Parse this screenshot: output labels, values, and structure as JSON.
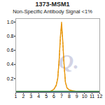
{
  "chart_data": {
    "type": "line",
    "title": "1373-MSM1",
    "subtitle": "Non-Specific Antibody Signal <1%",
    "x": [
      1,
      1.5,
      2,
      2.5,
      3,
      3.5,
      4,
      4.5,
      5,
      5.5,
      6,
      6.3,
      6.5,
      6.7,
      6.85,
      7.0,
      7.15,
      7.3,
      7.5,
      7.7,
      8,
      8.5,
      9,
      9.5,
      10,
      10.5,
      11,
      11.5,
      12
    ],
    "series": [
      {
        "color": "#E8960A",
        "line_style": "dashed",
        "values": [
          0.01,
          0.01,
          0.01,
          0.01,
          0.01,
          0.01,
          0.01,
          0.01,
          0.015,
          0.015,
          0.05,
          0.11,
          0.21,
          0.48,
          0.78,
          0.97,
          0.72,
          0.43,
          0.16,
          0.07,
          0.04,
          0.025,
          0.015,
          0.015,
          0.01,
          0.01,
          0.01,
          0.01,
          0.01
        ]
      },
      {
        "color": "#E8960A",
        "line_style": "solid",
        "values": [
          0.01,
          0.01,
          0.01,
          0.01,
          0.01,
          0.01,
          0.01,
          0.01,
          0.015,
          0.015,
          0.05,
          0.1,
          0.2,
          0.5,
          0.8,
          1.0,
          0.75,
          0.45,
          0.15,
          0.07,
          0.04,
          0.025,
          0.015,
          0.015,
          0.01,
          0.01,
          0.01,
          0.01,
          0.01
        ]
      },
      {
        "color": "#3A8C3A",
        "line_style": "solid",
        "values": [
          0.02,
          0.02,
          0.02,
          0.02,
          0.02,
          0.02,
          0.02,
          0.02,
          0.02,
          0.02,
          0.02,
          0.02,
          0.02,
          0.02,
          0.02,
          0.02,
          0.02,
          0.02,
          0.02,
          0.02,
          0.02,
          0.02,
          0.02,
          0.02,
          0.02,
          0.02,
          0.02,
          0.02,
          0.02
        ]
      },
      {
        "color": "#1A3A8C",
        "line_style": "solid",
        "values": [
          0.005,
          0.005,
          0.005,
          0.005,
          0.005,
          0.005,
          0.005,
          0.005,
          0.005,
          0.005,
          0.005,
          0.005,
          0.005,
          0.005,
          0.005,
          0.005,
          0.005,
          0.005,
          0.005,
          0.005,
          0.005,
          0.005,
          0.005,
          0.005,
          0.005,
          0.005,
          0.005,
          0.005,
          0.005
        ]
      }
    ],
    "xlim": [
      1,
      12
    ],
    "ylim": [
      0,
      1.05
    ],
    "xticks": [
      1,
      2,
      3,
      4,
      5,
      6,
      7,
      8,
      9,
      10,
      11,
      12
    ],
    "yticks": [
      0.2,
      0.4,
      0.6,
      0.8,
      {
        "value": 1.0,
        "label": "1.0"
      }
    ],
    "grid": false,
    "annotations": [
      {
        "text": "Q.",
        "color": "#CCCCE0"
      }
    ]
  }
}
